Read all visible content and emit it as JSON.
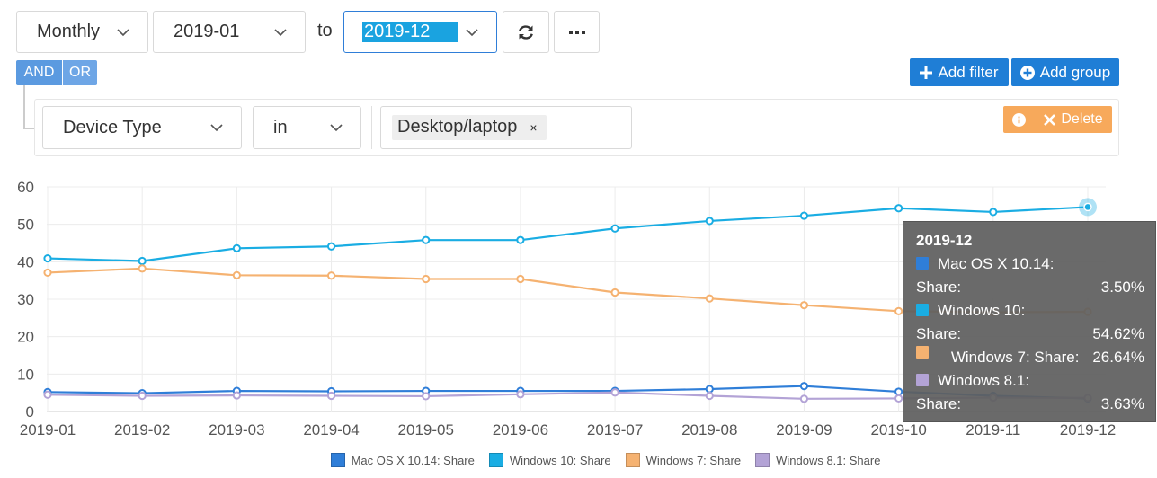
{
  "filters": {
    "interval": "Monthly",
    "from": "2019-01",
    "to_label": "to",
    "to": "2019-12",
    "logic": {
      "and": "AND",
      "or": "OR"
    },
    "add_filter": "Add filter",
    "add_group": "Add group",
    "rule": {
      "field": "Device Type",
      "operator": "in",
      "value": "Desktop/laptop",
      "remove_value": "×",
      "delete": "Delete"
    }
  },
  "colors": {
    "accent": "#1f7ed6",
    "mac": "#2f7ed8",
    "win10": "#1aade3",
    "win7": "#f5b271",
    "win81": "#b3a3d6"
  },
  "chart_data": {
    "type": "line",
    "categories": [
      "2019-01",
      "2019-02",
      "2019-03",
      "2019-04",
      "2019-05",
      "2019-06",
      "2019-07",
      "2019-08",
      "2019-09",
      "2019-10",
      "2019-11",
      "2019-12"
    ],
    "ylim": [
      0,
      60
    ],
    "yticks": [
      0,
      10,
      20,
      30,
      40,
      50,
      60
    ],
    "grid": true,
    "legend_position": "bottom",
    "series": [
      {
        "name": "Mac OS X 10.14: Share",
        "color": "#2f7ed8",
        "values": [
          5.2,
          4.9,
          5.5,
          5.4,
          5.5,
          5.5,
          5.5,
          6.0,
          6.8,
          5.3,
          4.2,
          3.5
        ]
      },
      {
        "name": "Windows 10: Share",
        "color": "#1aade3",
        "values": [
          40.9,
          40.2,
          43.6,
          44.1,
          45.8,
          45.8,
          48.9,
          50.9,
          52.3,
          54.3,
          53.3,
          54.62
        ]
      },
      {
        "name": "Windows 7: Share",
        "color": "#f5b271",
        "values": [
          37.1,
          38.2,
          36.4,
          36.3,
          35.4,
          35.4,
          31.8,
          30.2,
          28.4,
          26.8,
          26.5,
          26.64
        ]
      },
      {
        "name": "Windows 8.1: Share",
        "color": "#b3a3d6",
        "values": [
          4.5,
          4.2,
          4.3,
          4.2,
          4.1,
          4.6,
          5.1,
          4.2,
          3.4,
          3.5,
          3.7,
          3.63
        ]
      }
    ],
    "tooltip": {
      "title": "2019-12",
      "rows": [
        {
          "label1": "Mac OS X 10.14:",
          "label2": "Share:",
          "value": "3.50%",
          "color": "#2f7ed8"
        },
        {
          "label1": "Windows 10:",
          "label2": "Share:",
          "value": "54.62%",
          "color": "#1aade3"
        },
        {
          "label1": "Windows 7: Share:",
          "label2": "",
          "value": "26.64%",
          "color": "#f5b271"
        },
        {
          "label1": "Windows 8.1:",
          "label2": "Share:",
          "value": "3.63%",
          "color": "#b3a3d6"
        }
      ]
    }
  }
}
